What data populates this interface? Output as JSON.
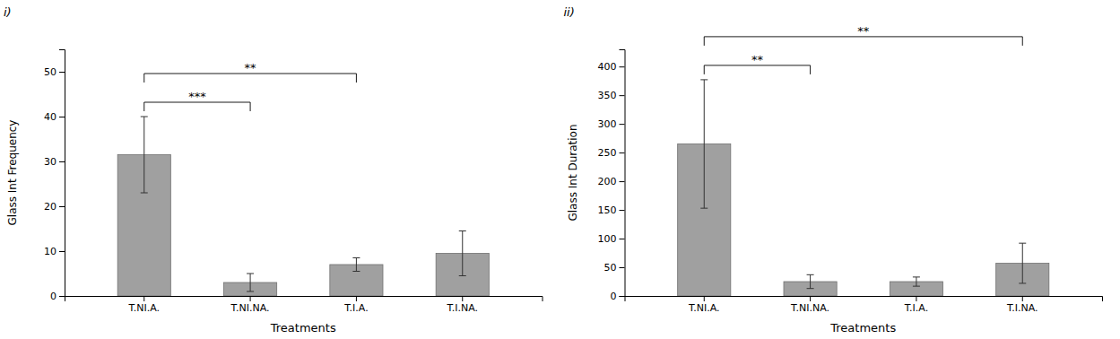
{
  "chart_data": [
    {
      "type": "bar",
      "categories": [
        "T.NI.A.",
        "T.NI.NA.",
        "T.I.A.",
        "T.I.NA."
      ],
      "values": [
        31.5,
        3.0,
        7.0,
        9.5
      ],
      "errors": [
        8.5,
        2.0,
        1.5,
        5.0
      ],
      "color": "#a0a0a0",
      "xlabel": "Treatments",
      "ylabel": "Glass Int Frequency",
      "ylim": [
        0,
        55
      ],
      "yticks": [
        0,
        10,
        20,
        30,
        40,
        50
      ],
      "grid": false,
      "annotations": [
        {
          "text": "i)"
        },
        {
          "text": "***",
          "between": [
            "T.NI.A.",
            "T.NI.NA."
          ]
        },
        {
          "text": "**",
          "between": [
            "T.NI.A.",
            "T.I.A."
          ]
        }
      ]
    },
    {
      "type": "bar",
      "categories": [
        "T.NI.A.",
        "T.NI.NA.",
        "T.I.A.",
        "T.I.NA."
      ],
      "values": [
        265.0,
        25.0,
        25.0,
        57.0
      ],
      "errors": [
        112.0,
        12.0,
        8.0,
        35.0
      ],
      "color": "#a0a0a0",
      "xlabel": "Treatments",
      "ylabel": "Glass Int Duration",
      "ylim": [
        0,
        430
      ],
      "yticks": [
        0,
        50,
        100,
        150,
        200,
        250,
        300,
        350,
        400
      ],
      "grid": false,
      "annotations": [
        {
          "text": "ii)"
        },
        {
          "text": "**",
          "between": [
            "T.NI.A.",
            "T.NI.NA."
          ]
        },
        {
          "text": "**",
          "between": [
            "T.NI.A.",
            "T.I.NA."
          ]
        }
      ]
    }
  ]
}
